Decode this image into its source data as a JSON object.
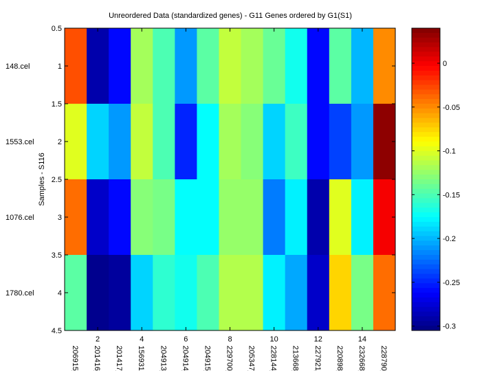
{
  "chart_data": {
    "type": "heatmap",
    "title": "Unreordered Data (standardized genes) - G11 Genes ordered by G1(S1)",
    "ylabel": "Samples - S116",
    "xlabel": "",
    "colormap": "jet",
    "clim": [
      -0.305,
      0.04
    ],
    "x_ticks": [
      2,
      4,
      6,
      8,
      10,
      12,
      14
    ],
    "y_ticks": [
      0.5,
      1,
      1.5,
      2,
      2.5,
      3,
      3.5,
      4,
      4.5
    ],
    "xlim": [
      0.5,
      15.5
    ],
    "ylim": [
      0.5,
      4.5
    ],
    "colorbar_ticks": [
      0,
      -0.05,
      -0.1,
      -0.15,
      -0.2,
      -0.25,
      -0.3
    ],
    "colorbar_tick_labels": [
      "0",
      "-0.05",
      "-0.1",
      "-0.15",
      "-0.2",
      "-0.25",
      "-0.3"
    ],
    "columns": [
      "206915_",
      "201416_",
      "201417_",
      "1569316",
      "204913_",
      "204914_",
      "204915_",
      "229700_",
      "205347_",
      "228144_",
      "213668_",
      "227921_",
      "220898_",
      "232668_",
      "228790_"
    ],
    "rows": [
      "148.cel",
      "1553.cel",
      "1076.cel",
      "1780.cel"
    ],
    "values": [
      [
        -0.03,
        -0.29,
        -0.26,
        -0.12,
        -0.15,
        -0.21,
        -0.145,
        -0.11,
        -0.12,
        -0.14,
        -0.17,
        -0.26,
        -0.145,
        -0.2,
        -0.05
      ],
      [
        -0.1,
        -0.19,
        -0.21,
        -0.11,
        -0.15,
        -0.25,
        -0.175,
        -0.12,
        -0.13,
        -0.19,
        -0.155,
        -0.26,
        -0.24,
        -0.21,
        0.035
      ],
      [
        -0.04,
        -0.28,
        -0.26,
        -0.13,
        -0.135,
        -0.175,
        -0.175,
        -0.125,
        -0.125,
        -0.22,
        -0.18,
        -0.29,
        -0.1,
        -0.18,
        0.0
      ],
      [
        -0.145,
        -0.3,
        -0.295,
        -0.19,
        -0.16,
        -0.17,
        -0.15,
        -0.115,
        -0.115,
        -0.18,
        -0.205,
        -0.28,
        -0.075,
        -0.135,
        -0.04
      ]
    ]
  }
}
